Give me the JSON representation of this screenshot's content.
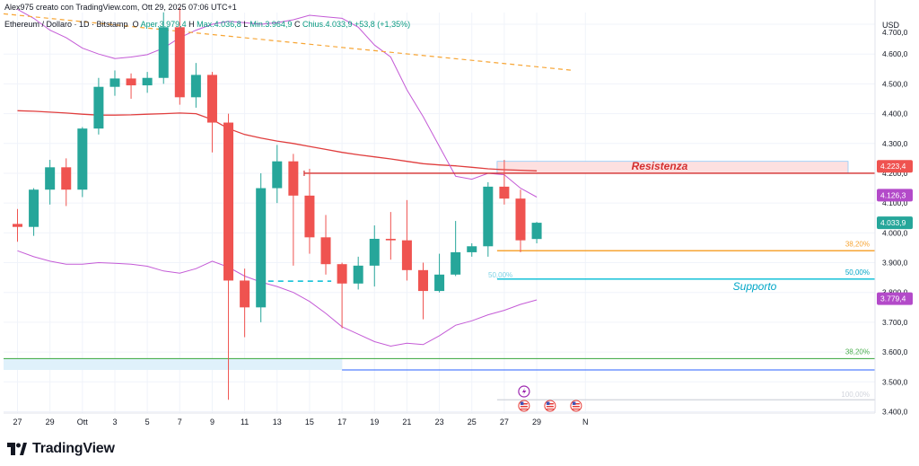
{
  "header": {
    "creator": "Alex975 creato con TradingView.com, Ott 29, 2025 07:06 UTC+1",
    "symbol": "Ethereum / Dollaro · 1D · Bitstamp",
    "o_label": "O",
    "o_value": "Aper.3.979,4",
    "h_label": "H",
    "h_value": "Max.4.036,8",
    "l_label": "L",
    "l_value": "Min.3.964,9",
    "c_label": "C",
    "c_value": "Chius.4.033,9",
    "change": "+53,8 (+1,35%)"
  },
  "logo_text": "TradingView",
  "colors": {
    "up": "#26a69a",
    "down": "#ef5350",
    "ma": "#e03e3e",
    "bands": "#c45bd6",
    "trend": "#f7a534",
    "resistance": "#d32f2f",
    "support": "#00bcd4",
    "fib_green": "#4caf50",
    "fib_orange": "#f7a534",
    "blue_line": "#2962ff"
  },
  "chart_data": {
    "type": "candlestick",
    "currency": "USD",
    "ylim": [
      3380,
      4810
    ],
    "y_ticks": [
      3400,
      3500,
      3600,
      3700,
      3800,
      3900,
      4000,
      4100,
      4200,
      4300,
      4400,
      4500,
      4600,
      4700
    ],
    "y_tick_labels": [
      "3.400,0",
      "3.500,0",
      "3.600,0",
      "3.700,0",
      "3.800,0",
      "3.900,0",
      "4.000,0",
      "4.100,0",
      "4.200,0",
      "4.300,0",
      "4.400,0",
      "4.500,0",
      "4.600,0",
      "4.700,0"
    ],
    "x_ticks": [
      {
        "i": 0,
        "label": "27"
      },
      {
        "i": 2,
        "label": "29"
      },
      {
        "i": 4,
        "label": "Ott"
      },
      {
        "i": 6,
        "label": "3"
      },
      {
        "i": 8,
        "label": "5"
      },
      {
        "i": 10,
        "label": "7"
      },
      {
        "i": 12,
        "label": "9"
      },
      {
        "i": 14,
        "label": "11"
      },
      {
        "i": 16,
        "label": "13"
      },
      {
        "i": 18,
        "label": "15"
      },
      {
        "i": 20,
        "label": "17"
      },
      {
        "i": 22,
        "label": "19"
      },
      {
        "i": 24,
        "label": "21"
      },
      {
        "i": 26,
        "label": "23"
      },
      {
        "i": 28,
        "label": "25"
      },
      {
        "i": 30,
        "label": "27"
      },
      {
        "i": 32,
        "label": "29"
      },
      {
        "i": 35,
        "label": "N"
      }
    ],
    "candles": [
      {
        "o": 4030,
        "h": 4080,
        "l": 3970,
        "c": 4020
      },
      {
        "o": 4020,
        "h": 4150,
        "l": 3990,
        "c": 4145
      },
      {
        "o": 4145,
        "h": 4245,
        "l": 4095,
        "c": 4220
      },
      {
        "o": 4220,
        "h": 4250,
        "l": 4090,
        "c": 4145
      },
      {
        "o": 4145,
        "h": 4355,
        "l": 4120,
        "c": 4350
      },
      {
        "o": 4350,
        "h": 4520,
        "l": 4330,
        "c": 4490
      },
      {
        "o": 4490,
        "h": 4545,
        "l": 4460,
        "c": 4518
      },
      {
        "o": 4518,
        "h": 4535,
        "l": 4450,
        "c": 4495
      },
      {
        "o": 4495,
        "h": 4540,
        "l": 4470,
        "c": 4520
      },
      {
        "o": 4520,
        "h": 4740,
        "l": 4500,
        "c": 4690
      },
      {
        "o": 4690,
        "h": 4755,
        "l": 4430,
        "c": 4455
      },
      {
        "o": 4455,
        "h": 4570,
        "l": 4420,
        "c": 4530
      },
      {
        "o": 4530,
        "h": 4540,
        "l": 4270,
        "c": 4370
      },
      {
        "o": 4370,
        "h": 4400,
        "l": 3440,
        "c": 3840
      },
      {
        "o": 3840,
        "h": 3880,
        "l": 3650,
        "c": 3750
      },
      {
        "o": 3750,
        "h": 4200,
        "l": 3700,
        "c": 4150
      },
      {
        "o": 4150,
        "h": 4295,
        "l": 4100,
        "c": 4240
      },
      {
        "o": 4240,
        "h": 4265,
        "l": 3890,
        "c": 4125
      },
      {
        "o": 4125,
        "h": 4215,
        "l": 3930,
        "c": 3985
      },
      {
        "o": 3985,
        "h": 4060,
        "l": 3860,
        "c": 3895
      },
      {
        "o": 3895,
        "h": 3900,
        "l": 3680,
        "c": 3830
      },
      {
        "o": 3830,
        "h": 3920,
        "l": 3810,
        "c": 3890
      },
      {
        "o": 3890,
        "h": 4025,
        "l": 3820,
        "c": 3980
      },
      {
        "o": 3980,
        "h": 4070,
        "l": 3910,
        "c": 3975
      },
      {
        "o": 3975,
        "h": 4110,
        "l": 3840,
        "c": 3875
      },
      {
        "o": 3875,
        "h": 3900,
        "l": 3710,
        "c": 3805
      },
      {
        "o": 3805,
        "h": 3930,
        "l": 3800,
        "c": 3860
      },
      {
        "o": 3860,
        "h": 4040,
        "l": 3855,
        "c": 3935
      },
      {
        "o": 3935,
        "h": 3965,
        "l": 3920,
        "c": 3955
      },
      {
        "o": 3955,
        "h": 4170,
        "l": 3920,
        "c": 4155
      },
      {
        "o": 4155,
        "h": 4245,
        "l": 4095,
        "c": 4115
      },
      {
        "o": 4115,
        "h": 4145,
        "l": 3935,
        "c": 3975
      },
      {
        "o": 3979.4,
        "h": 4036.8,
        "l": 3964.9,
        "c": 4033.9
      }
    ],
    "moving_average": [
      4410,
      4408,
      4405,
      4402,
      4398,
      4395,
      4395,
      4396,
      4398,
      4400,
      4402,
      4400,
      4380,
      4350,
      4330,
      4318,
      4308,
      4300,
      4290,
      4280,
      4270,
      4262,
      4255,
      4248,
      4240,
      4232,
      4228,
      4225,
      4220,
      4215,
      4212,
      4210,
      4208
    ],
    "bollinger_upper": [
      4750,
      4720,
      4680,
      4655,
      4620,
      4600,
      4585,
      4590,
      4598,
      4620,
      4655,
      4680,
      4700,
      4710,
      4705,
      4700,
      4705,
      4715,
      4730,
      4725,
      4720,
      4690,
      4630,
      4590,
      4480,
      4390,
      4290,
      4190,
      4180,
      4200,
      4195,
      4150,
      4120
    ],
    "bollinger_lower": [
      3940,
      3920,
      3905,
      3895,
      3895,
      3900,
      3898,
      3895,
      3888,
      3872,
      3865,
      3880,
      3905,
      3885,
      3855,
      3835,
      3820,
      3800,
      3770,
      3730,
      3685,
      3660,
      3635,
      3620,
      3630,
      3625,
      3655,
      3690,
      3705,
      3725,
      3740,
      3760,
      3775
    ],
    "trendline": {
      "from": {
        "i": 0,
        "y": 4735
      },
      "to": {
        "i": 34,
        "y": 4545
      }
    },
    "annotations": {
      "resistance_label": "Resistenza",
      "support_label": "Supporto",
      "fib_3820_upper": "38,20%",
      "fib_5000_upper": "50,00%",
      "fib_3820_lower": "38,20%",
      "fib_5000_mid": "50,00%",
      "fib_100": "100,00%"
    },
    "levels": {
      "resistance": 4200,
      "resistance_zone": [
        4200,
        4240
      ],
      "fib_382": 3940,
      "fib_50": 3845,
      "dashed_50": 3838,
      "green_382": 3578,
      "blue": 3540,
      "lower_zone": [
        3540,
        3578
      ],
      "fib_100": 3440
    },
    "price_badges": [
      {
        "label": "4.223,4",
        "value": 4223.4,
        "color": "#ef5350"
      },
      {
        "label": "4.126,3",
        "value": 4126.3,
        "color": "#b34ac9"
      },
      {
        "label": "4.033,9",
        "value": 4033.9,
        "color": "#26a69a"
      },
      {
        "label": "3.779,4",
        "value": 3779.4,
        "color": "#b34ac9"
      }
    ]
  }
}
